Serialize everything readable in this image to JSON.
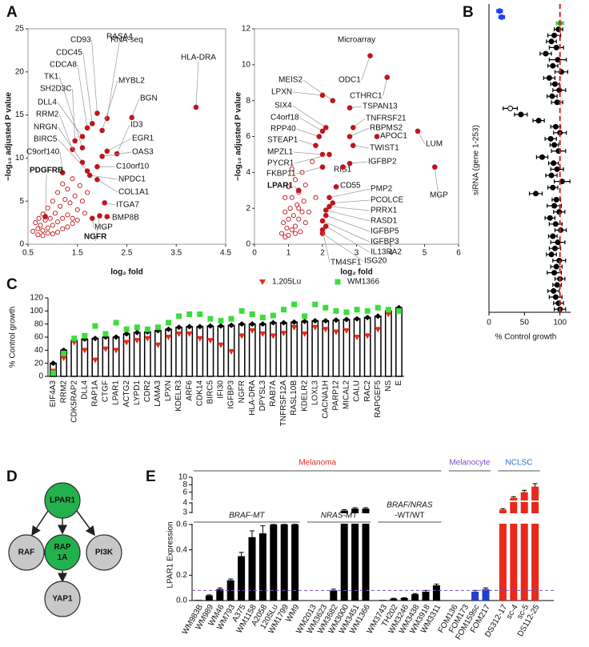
{
  "panels": [
    "A",
    "B",
    "C",
    "D",
    "E"
  ],
  "chart_data": [
    {
      "type": "scatter",
      "title": "RNA-seq",
      "x_label": "log₂ fold",
      "y_label": "−log₁₀ adjusted P value",
      "xlim": [
        0.5,
        4.5
      ],
      "xticks": [
        0.5,
        1.5,
        2.5,
        3.5,
        4.5
      ],
      "ylim": [
        0,
        25
      ],
      "yticks": [
        0,
        5,
        10,
        15,
        20,
        25
      ],
      "color": "#c0161b",
      "labeled": {
        "labels": [
          "CD93",
          "RASA4",
          "HLA-DRA",
          "CDC45",
          "MYBL2",
          "CDCA8",
          "TK1",
          "BGN",
          "SH2D3C",
          "DLL4",
          "ID3",
          "RRM2",
          "EGR1",
          "NRGN",
          "OAS3",
          "BIRC5",
          "C9orf140",
          "C10orf10",
          "NPDC1",
          "PDGFRB",
          "COL1A1",
          "ITGA7",
          "BMP8B",
          "MGP",
          "NGFR"
        ],
        "x": [
          1.9,
          2.1,
          3.9,
          1.8,
          2.0,
          1.7,
          1.6,
          2.6,
          1.45,
          1.6,
          2.3,
          1.4,
          2.1,
          1.6,
          2.0,
          1.7,
          1.2,
          1.9,
          1.75,
          0.85,
          1.9,
          2.05,
          2.1,
          1.8,
          1.95
        ],
        "y": [
          15.2,
          14.6,
          15.9,
          14.0,
          13.2,
          13.5,
          11.2,
          14.7,
          12.0,
          12.5,
          10.5,
          11.0,
          10.8,
          9.5,
          10.2,
          8.5,
          8.3,
          9.0,
          8.0,
          3.2,
          7.5,
          4.8,
          3.2,
          3.0,
          3.3
        ],
        "bold": [
          19,
          24
        ]
      },
      "unlabeled": {
        "x": [
          0.6,
          0.65,
          0.7,
          0.72,
          0.75,
          0.8,
          0.8,
          0.85,
          0.9,
          0.9,
          0.95,
          1.0,
          1.0,
          1.05,
          1.1,
          1.1,
          1.15,
          1.2,
          1.2,
          1.25,
          1.3,
          1.3,
          1.35,
          1.4,
          1.4,
          1.45,
          1.5,
          1.55,
          1.6,
          1.65,
          1.7,
          1.1,
          1.0,
          0.9,
          1.2,
          1.3,
          1.5,
          0.7,
          0.8,
          1.4
        ],
        "y": [
          1.5,
          2.5,
          1.8,
          3.0,
          2.2,
          1.6,
          3.5,
          2.8,
          1.9,
          4.2,
          3.0,
          2.2,
          5.0,
          3.6,
          2.6,
          6.0,
          4.4,
          3.0,
          7.0,
          5.2,
          3.4,
          6.4,
          4.8,
          2.4,
          7.6,
          5.6,
          4.0,
          6.8,
          5.0,
          3.6,
          6.0,
          1.4,
          1.2,
          1.3,
          1.8,
          2.0,
          2.8,
          1.1,
          1.0,
          3.0
        ]
      }
    },
    {
      "type": "scatter",
      "title": "Microarray",
      "x_label": "log₂ fold",
      "y_label": "−log₁₀ adjusted P value",
      "xlim": [
        0,
        6
      ],
      "xticks": [
        0,
        1,
        2,
        3,
        4,
        5,
        6
      ],
      "ylim": [
        0,
        12
      ],
      "yticks": [
        0,
        2,
        4,
        6,
        8,
        10,
        12
      ],
      "color": "#c0161b",
      "labeled": {
        "labels": [
          "MEIS2",
          "ODC1",
          "LPXN",
          "CTHRC1",
          "SIX4",
          "TSPAN13",
          "C4orf18",
          "TNFRSF21",
          "RPP40",
          "RBPMS2",
          "STEAP1",
          "APOC1",
          "LUM",
          "MPZL1",
          "TWIST1",
          "PYCR1",
          "IGFBP2",
          "FKBP11",
          "RIS1",
          "MGP",
          "LPAR1",
          "CD55",
          "PMP2",
          "PCOLCE",
          "PRRX1",
          "RASD1",
          "IGFBP5",
          "IGFBP3",
          "IL13RA2",
          "ISG20",
          "TM4SF1"
        ],
        "x": [
          2.3,
          3.4,
          2.0,
          3.9,
          2.1,
          2.8,
          2.0,
          2.9,
          1.9,
          2.8,
          1.8,
          3.6,
          4.8,
          2.0,
          2.9,
          2.2,
          2.8,
          2.0,
          2.6,
          5.3,
          1.3,
          2.4,
          2.2,
          2.3,
          2.2,
          2.1,
          2.1,
          2.0,
          2.1,
          2.0,
          2.0
        ],
        "y": [
          8.0,
          10.5,
          8.3,
          9.3,
          6.5,
          7.6,
          6.3,
          6.5,
          6.0,
          6.0,
          5.5,
          6.0,
          6.3,
          5.0,
          5.5,
          5.0,
          4.5,
          4.3,
          4.3,
          4.3,
          3.0,
          3.2,
          2.6,
          2.3,
          2.1,
          1.9,
          1.6,
          1.3,
          1.0,
          0.6,
          0.8
        ],
        "bold": [
          20
        ]
      },
      "unlabeled": {
        "x": [
          0.8,
          0.85,
          0.9,
          0.9,
          0.95,
          1.0,
          1.0,
          1.05,
          1.1,
          1.1,
          1.15,
          1.2,
          1.2,
          1.25,
          1.3,
          1.3,
          1.35,
          1.4,
          1.4,
          1.45,
          1.5,
          1.5,
          1.6,
          1.7,
          1.8,
          1.0,
          1.1,
          1.2,
          0.9,
          1.3
        ],
        "y": [
          0.6,
          1.2,
          1.8,
          2.6,
          0.9,
          1.4,
          3.2,
          2.0,
          0.8,
          2.6,
          1.6,
          3.6,
          1.0,
          2.2,
          1.4,
          2.9,
          0.7,
          1.8,
          4.0,
          2.4,
          1.2,
          3.3,
          1.8,
          4.6,
          2.6,
          0.5,
          4.2,
          0.6,
          0.4,
          2.0
        ]
      }
    },
    {
      "type": "errorbar_scatter",
      "x_label": "% Control growth",
      "y_label": "siRNA (gene 1-253)",
      "xlim": [
        0,
        115
      ],
      "xticks": [
        0,
        50,
        100
      ],
      "color": "#000000",
      "special_colors": {
        "0": "#1f3fff",
        "1": "#1f3fff",
        "2": "#2eb82e"
      },
      "reference_line": {
        "value": 100,
        "color": "#e0201b"
      },
      "values": [
        15,
        18,
        100,
        98,
        92,
        88,
        95,
        80,
        97,
        90,
        102,
        85,
        93,
        99,
        89,
        96,
        30,
        45,
        70,
        94,
        100,
        87,
        92,
        98,
        75,
        91,
        96,
        88,
        103,
        90,
        66,
        95,
        92,
        99,
        86,
        94,
        101,
        90,
        97,
        93,
        88,
        99,
        95,
        92,
        100,
        96,
        91,
        94,
        98,
        100
      ],
      "errors": [
        4,
        4,
        5,
        6,
        9,
        7,
        10,
        8,
        12,
        7,
        9,
        8,
        6,
        9,
        7,
        8,
        10,
        9,
        8,
        7,
        9,
        8,
        6,
        10,
        8,
        7,
        9,
        8,
        11,
        7,
        9,
        6,
        10,
        8,
        7,
        9,
        8,
        6,
        10,
        8,
        7,
        9,
        8,
        10,
        7,
        6,
        8,
        9,
        7,
        8
      ]
    },
    {
      "type": "bar",
      "y_label": "% Control growth",
      "ylim": [
        0,
        120
      ],
      "yticks": [
        0,
        20,
        40,
        60,
        80,
        100,
        120
      ],
      "color": "#000000",
      "categories": [
        "EIF4A3",
        "RRM2",
        "CDK5RAP2",
        "DLL4",
        "RAP1A",
        "CTGF",
        "LPAR1",
        "ACTG2",
        "LYPD1",
        "CDR2",
        "LAMA3",
        "LPXN",
        "KDELR3",
        "ARF6",
        "CDK14",
        "BIRC5",
        "IFI30",
        "IGFBP3",
        "NGFR",
        "HLA-DRA",
        "DPYSL3",
        "RAB7A",
        "TNFRSF12A",
        "RASL10B",
        "KDELR2",
        "LOXL3",
        "CACNA1H",
        "PARP12",
        "MICAL2",
        "CALU",
        "RAC2",
        "RAPGEF5",
        "NS",
        "E"
      ],
      "values": [
        20,
        40,
        55,
        57,
        58,
        60,
        60,
        65,
        67,
        68,
        70,
        72,
        75,
        76,
        76,
        77,
        77,
        78,
        80,
        80,
        80,
        82,
        82,
        83,
        84,
        85,
        85,
        86,
        87,
        88,
        90,
        92,
        100,
        105
      ],
      "series": [
        {
          "name": "1,205Lu",
          "color": "#e8291c",
          "marker": "triangle",
          "values": [
            8,
            28,
            52,
            40,
            25,
            42,
            40,
            52,
            55,
            58,
            48,
            60,
            65,
            65,
            58,
            55,
            48,
            38,
            62,
            70,
            65,
            62,
            66,
            75,
            65,
            75,
            72,
            68,
            70,
            60,
            62,
            72,
            95,
            100
          ]
        },
        {
          "name": "WM1366",
          "color": "#3ddc3d",
          "marker": "square",
          "values": [
            5,
            35,
            58,
            62,
            77,
            65,
            82,
            72,
            75,
            72,
            75,
            82,
            92,
            95,
            95,
            88,
            85,
            88,
            100,
            95,
            90,
            93,
            102,
            110,
            92,
            110,
            105,
            100,
            98,
            102,
            100,
            105,
            102,
            100
          ]
        }
      ]
    },
    {
      "type": "bar_broken",
      "y_label": "LPAR1 Expression",
      "y_segments": [
        [
          0,
          0.6
        ],
        [
          3,
          4
        ],
        [
          4,
          10
        ]
      ],
      "yticks": [
        {
          "value": 0,
          "label": "0.0"
        },
        0.2,
        0.4,
        0.6,
        3,
        4,
        6,
        8,
        10
      ],
      "reference_line": {
        "value": 0.08,
        "color": "#7b4fc9"
      },
      "categories": [
        "WM983B",
        "WM989",
        "WM46",
        "WM793",
        "A375",
        "WM1158",
        "A2058",
        "1205Lu",
        "WM1799",
        "WM9",
        "WM2013",
        "WM3623",
        "WM3682",
        "WM3000",
        "WM3451",
        "WM1366",
        "WM3743",
        "TH202",
        "WM3246",
        "WM3438",
        "WM3918",
        "WM3311",
        "FOM136",
        "FOM173",
        "FOM159sc",
        "FOM217",
        "DS312-17",
        "sc-4",
        "sc-5",
        "DS112-25"
      ],
      "values": [
        0.005,
        0.04,
        0.09,
        0.16,
        0.35,
        0.5,
        0.53,
        0.6,
        0.62,
        0.63,
        0,
        0,
        0.08,
        3.2,
        3.4,
        3.4,
        0.005,
        0.015,
        0.02,
        0.05,
        0.07,
        0.12,
        0,
        0,
        0.07,
        0.09,
        3.3,
        4.5,
        6,
        7.5
      ],
      "errors": [
        0,
        0.005,
        0.01,
        0.01,
        0.03,
        0.05,
        0.06,
        0.01,
        0.01,
        0.01,
        0,
        0,
        0.01,
        0.1,
        0.1,
        0.1,
        0,
        0.003,
        0.003,
        0.005,
        0.01,
        0.01,
        0,
        0,
        0.01,
        0.01,
        0.1,
        0.3,
        0.5,
        0.8
      ],
      "groups": [
        {
          "label": "Melanoma",
          "label_color": "#e8291c",
          "bar_color": "#000000",
          "start": 0,
          "end": 21
        },
        {
          "label": "Melanocyte",
          "label_color": "#7b4fc9",
          "bar_color": "#1f3fcc",
          "start": 22,
          "end": 25
        },
        {
          "label": "NCLSC",
          "label_color": "#1f6fd0",
          "bar_color": "#e8291c",
          "start": 26,
          "end": 29
        }
      ],
      "subgroups": [
        {
          "lines": [
            "BRAF-MT"
          ],
          "start": 0,
          "end": 9
        },
        {
          "lines": [
            "NRAS-MT"
          ],
          "start": 10,
          "end": 15
        },
        {
          "lines": [
            "BRAF/NRAS",
            "-WT/WT"
          ],
          "start": 16,
          "end": 21
        }
      ]
    }
  ],
  "diagram": {
    "nodes": [
      {
        "lines": [
          "LPAR1"
        ],
        "color": "#22b14c"
      },
      {
        "lines": [
          "RAF"
        ],
        "color": "#c8c8c8"
      },
      {
        "lines": [
          "RAP",
          "1A"
        ],
        "color": "#22b14c"
      },
      {
        "lines": [
          "PI3K"
        ],
        "color": "#c8c8c8"
      },
      {
        "lines": [
          "YAP1"
        ],
        "color": "#c8c8c8"
      }
    ]
  }
}
